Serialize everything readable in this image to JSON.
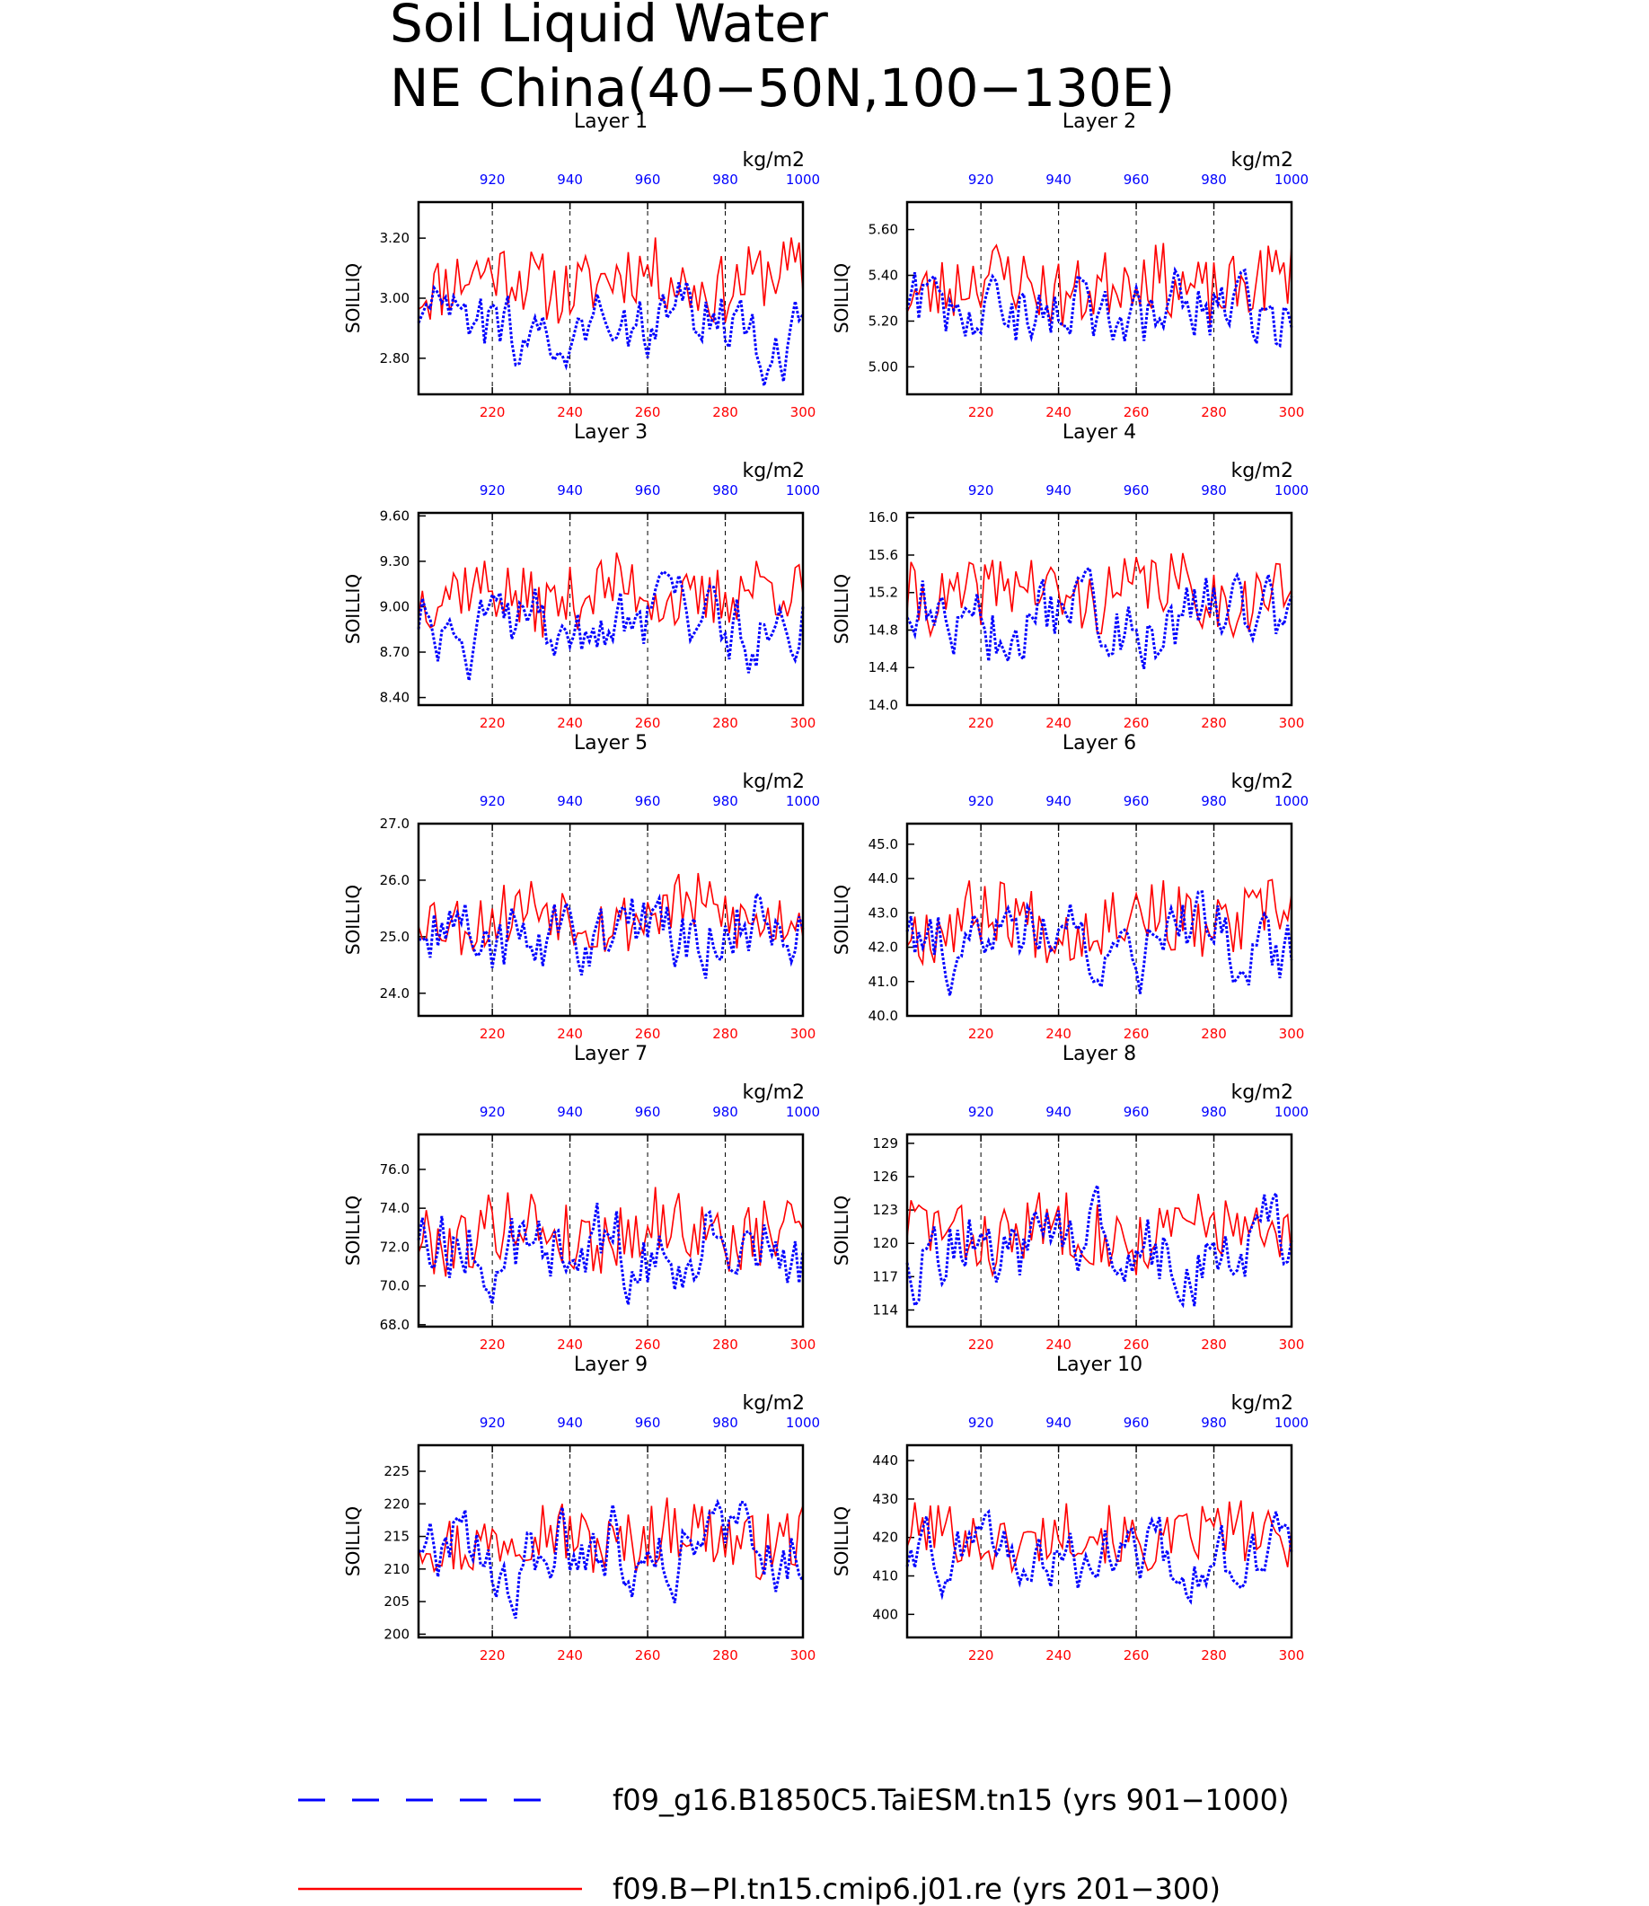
{
  "figure": {
    "title_line1": "Soil Liquid Water",
    "title_line2": "NE China(40−50N,100−130E)",
    "colors": {
      "ctl": "#ff0000",
      "exp": "#0000ff",
      "frame": "#000000"
    }
  },
  "legend": [
    {
      "label": "f09_g16.B1850C5.TaiESM.tn15 (yrs 901−1000)",
      "color": "#0000ff",
      "style": "dashed"
    },
    {
      "label": "f09.B−PI.tn15.cmip6.j01.re (yrs 201−300)",
      "color": "#ff0000",
      "style": "solid"
    }
  ],
  "chart_data": [
    {
      "type": "line",
      "title": "Layer 1",
      "ylabel": "SOILLIQ",
      "units": "kg/m2",
      "xlim_bottom": [
        201,
        300
      ],
      "xlim_top": [
        901,
        1000
      ],
      "bottom_ticks": [
        "220",
        "240",
        "260",
        "280",
        "300"
      ],
      "top_ticks": [
        "920",
        "940",
        "960",
        "980",
        "1000"
      ],
      "ylim": [
        2.68,
        3.32
      ],
      "yticks": [
        "2.80",
        "3.00",
        "3.20"
      ],
      "ytick_values": [
        2.8,
        3.0,
        3.2
      ],
      "red_mean": 3.06,
      "red_amp": 0.09,
      "blue_mean": 2.9,
      "blue_amp": 0.09,
      "seed": 11
    },
    {
      "type": "line",
      "title": "Layer 2",
      "ylabel": "SOILLIQ",
      "units": "kg/m2",
      "xlim_bottom": [
        201,
        300
      ],
      "xlim_top": [
        901,
        1000
      ],
      "bottom_ticks": [
        "220",
        "240",
        "260",
        "280",
        "300"
      ],
      "top_ticks": [
        "920",
        "940",
        "960",
        "980",
        "1000"
      ],
      "ylim": [
        4.88,
        5.72
      ],
      "yticks": [
        "5.00",
        "5.20",
        "5.40",
        "5.60"
      ],
      "ytick_values": [
        5.0,
        5.2,
        5.4,
        5.6
      ],
      "red_mean": 5.36,
      "red_amp": 0.12,
      "blue_mean": 5.22,
      "blue_amp": 0.12,
      "seed": 23
    },
    {
      "type": "line",
      "title": "Layer 3",
      "ylabel": "SOILLIQ",
      "units": "kg/m2",
      "xlim_bottom": [
        201,
        300
      ],
      "xlim_top": [
        901,
        1000
      ],
      "bottom_ticks": [
        "220",
        "240",
        "260",
        "280",
        "300"
      ],
      "top_ticks": [
        "920",
        "940",
        "960",
        "980",
        "1000"
      ],
      "ylim": [
        8.35,
        9.62
      ],
      "yticks": [
        "8.40",
        "8.70",
        "9.00",
        "9.30",
        "9.60"
      ],
      "ytick_values": [
        8.4,
        8.7,
        9.0,
        9.3,
        9.6
      ],
      "red_mean": 9.08,
      "red_amp": 0.17,
      "blue_mean": 8.86,
      "blue_amp": 0.18,
      "seed": 37
    },
    {
      "type": "line",
      "title": "Layer 4",
      "ylabel": "SOILLIQ",
      "units": "kg/m2",
      "xlim_bottom": [
        201,
        300
      ],
      "xlim_top": [
        901,
        1000
      ],
      "bottom_ticks": [
        "220",
        "240",
        "260",
        "280",
        "300"
      ],
      "top_ticks": [
        "920",
        "940",
        "960",
        "980",
        "1000"
      ],
      "ylim": [
        14.0,
        16.05
      ],
      "yticks": [
        "14.0",
        "14.4",
        "14.8",
        "15.2",
        "15.6",
        "16.0"
      ],
      "ytick_values": [
        14.0,
        14.4,
        14.8,
        15.2,
        15.6,
        16.0
      ],
      "red_mean": 15.2,
      "red_amp": 0.28,
      "blue_mean": 14.9,
      "blue_amp": 0.3,
      "seed": 41
    },
    {
      "type": "line",
      "title": "Layer 5",
      "ylabel": "SOILLIQ",
      "units": "kg/m2",
      "xlim_bottom": [
        201,
        300
      ],
      "xlim_top": [
        901,
        1000
      ],
      "bottom_ticks": [
        "220",
        "240",
        "260",
        "280",
        "300"
      ],
      "top_ticks": [
        "920",
        "940",
        "960",
        "980",
        "1000"
      ],
      "ylim": [
        23.6,
        27.0
      ],
      "yticks": [
        "24.0",
        "25.0",
        "26.0",
        "27.0"
      ],
      "ytick_values": [
        24.0,
        25.0,
        26.0,
        27.0
      ],
      "red_mean": 25.4,
      "red_amp": 0.45,
      "blue_mean": 25.0,
      "blue_amp": 0.5,
      "seed": 53
    },
    {
      "type": "line",
      "title": "Layer 6",
      "ylabel": "SOILLIQ",
      "units": "kg/m2",
      "xlim_bottom": [
        201,
        300
      ],
      "xlim_top": [
        901,
        1000
      ],
      "bottom_ticks": [
        "220",
        "240",
        "260",
        "280",
        "300"
      ],
      "top_ticks": [
        "920",
        "940",
        "960",
        "980",
        "1000"
      ],
      "ylim": [
        40.0,
        45.6
      ],
      "yticks": [
        "40.0",
        "41.0",
        "42.0",
        "43.0",
        "44.0",
        "45.0"
      ],
      "ytick_values": [
        40.0,
        41.0,
        42.0,
        43.0,
        44.0,
        45.0
      ],
      "red_mean": 42.8,
      "red_amp": 0.8,
      "blue_mean": 42.2,
      "blue_amp": 0.85,
      "seed": 67
    },
    {
      "type": "line",
      "title": "Layer 7",
      "ylabel": "SOILLIQ",
      "units": "kg/m2",
      "xlim_bottom": [
        201,
        300
      ],
      "xlim_top": [
        901,
        1000
      ],
      "bottom_ticks": [
        "220",
        "240",
        "260",
        "280",
        "300"
      ],
      "top_ticks": [
        "920",
        "940",
        "960",
        "980",
        "1000"
      ],
      "ylim": [
        67.9,
        77.8
      ],
      "yticks": [
        "68.0",
        "70.0",
        "72.0",
        "74.0",
        "76.0"
      ],
      "ytick_values": [
        68.0,
        70.0,
        72.0,
        74.0,
        76.0
      ],
      "red_mean": 72.8,
      "red_amp": 1.4,
      "blue_mean": 72.0,
      "blue_amp": 1.5,
      "seed": 79
    },
    {
      "type": "line",
      "title": "Layer 8",
      "ylabel": "SOILLIQ",
      "units": "kg/m2",
      "xlim_bottom": [
        201,
        300
      ],
      "xlim_top": [
        901,
        1000
      ],
      "bottom_ticks": [
        "220",
        "240",
        "260",
        "280",
        "300"
      ],
      "top_ticks": [
        "920",
        "940",
        "960",
        "980",
        "1000"
      ],
      "ylim": [
        112.5,
        129.8
      ],
      "yticks": [
        "114",
        "117",
        "120",
        "123",
        "126",
        "129"
      ],
      "ytick_values": [
        114,
        117,
        120,
        123,
        126,
        129
      ],
      "red_mean": 121.0,
      "red_amp": 2.4,
      "blue_mean": 119.5,
      "blue_amp": 2.6,
      "seed": 83
    },
    {
      "type": "line",
      "title": "Layer 9",
      "ylabel": "SOILLIQ",
      "units": "kg/m2",
      "xlim_bottom": [
        201,
        300
      ],
      "xlim_top": [
        901,
        1000
      ],
      "bottom_ticks": [
        "220",
        "240",
        "260",
        "280",
        "300"
      ],
      "top_ticks": [
        "920",
        "940",
        "960",
        "980",
        "1000"
      ],
      "ylim": [
        199.5,
        229.0
      ],
      "yticks": [
        "200",
        "205",
        "210",
        "215",
        "220",
        "225"
      ],
      "ytick_values": [
        200,
        205,
        210,
        215,
        220,
        225
      ],
      "red_mean": 215.0,
      "red_amp": 4.0,
      "blue_mean": 213.0,
      "blue_amp": 4.5,
      "seed": 97
    },
    {
      "type": "line",
      "title": "Layer 10",
      "ylabel": "SOILLIQ",
      "units": "kg/m2",
      "xlim_bottom": [
        201,
        300
      ],
      "xlim_top": [
        901,
        1000
      ],
      "bottom_ticks": [
        "220",
        "240",
        "260",
        "280",
        "300"
      ],
      "top_ticks": [
        "920",
        "940",
        "960",
        "980",
        "1000"
      ],
      "ylim": [
        394.0,
        444.0
      ],
      "yticks": [
        "400",
        "410",
        "420",
        "430",
        "440"
      ],
      "ytick_values": [
        400,
        410,
        420,
        430,
        440
      ],
      "red_mean": 420.0,
      "red_amp": 6.0,
      "blue_mean": 415.0,
      "blue_amp": 6.5,
      "seed": 101
    }
  ]
}
